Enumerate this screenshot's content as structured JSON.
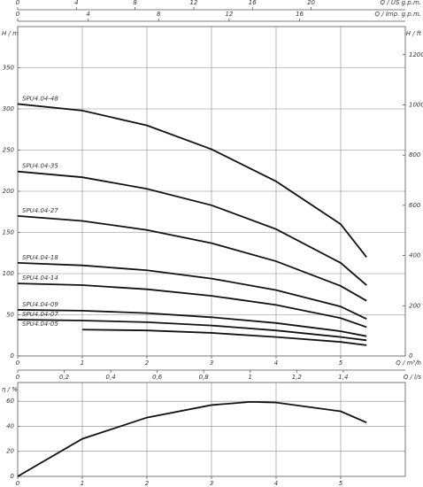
{
  "chart_data": [
    {
      "type": "line",
      "xaxes": [
        {
          "label": "Q / US g.p.m.",
          "lim": [
            0,
            26.42
          ],
          "ticks": [
            0,
            4,
            8,
            12,
            16,
            20
          ]
        },
        {
          "label": "Q / Imp. g.p.m.",
          "lim": [
            0,
            22.0
          ],
          "ticks": [
            0,
            4,
            8,
            12,
            16
          ]
        },
        {
          "label": "Q / m³/h",
          "lim": [
            0,
            6
          ],
          "ticks": [
            0,
            1,
            2,
            3,
            4,
            5
          ]
        },
        {
          "label": "Q / l/s",
          "lim": [
            0,
            1.667
          ],
          "ticks": [
            0,
            {
              "value": 0.2,
              "label": "0,2"
            },
            {
              "value": 0.4,
              "label": "0,4"
            },
            {
              "value": 0.6,
              "label": "0,6"
            },
            {
              "value": 0.8,
              "label": "0,8"
            },
            1,
            {
              "value": 1.2,
              "label": "1,2"
            },
            {
              "value": 1.4,
              "label": "1,4"
            }
          ]
        }
      ],
      "yaxes": [
        {
          "label": "H / m",
          "lim": [
            0,
            400
          ],
          "ticks": [
            0,
            50,
            100,
            150,
            200,
            250,
            300,
            350
          ]
        },
        {
          "label": "H / ft",
          "lim": [
            0,
            1312.3
          ],
          "ticks": [
            0,
            200,
            400,
            600,
            800,
            1000,
            1200
          ]
        }
      ],
      "grid": true,
      "series": [
        {
          "name": "SPU4.04-48",
          "color": "#111111",
          "x": [
            0,
            1,
            2,
            3,
            4,
            5,
            5.4
          ],
          "values": [
            306,
            298,
            280,
            251,
            212,
            160,
            120
          ]
        },
        {
          "name": "SPU4.04-35",
          "color": "#111111",
          "x": [
            0,
            1,
            2,
            3,
            4,
            5,
            5.4
          ],
          "values": [
            224,
            217,
            203,
            183,
            154,
            113,
            86
          ]
        },
        {
          "name": "SPU4.04-27",
          "color": "#111111",
          "x": [
            0,
            1,
            2,
            3,
            4,
            5,
            5.4
          ],
          "values": [
            170,
            164,
            153,
            137,
            115,
            85,
            67
          ]
        },
        {
          "name": "SPU4.04-18",
          "color": "#111111",
          "x": [
            0,
            1,
            2,
            3,
            4,
            5,
            5.4
          ],
          "values": [
            113,
            110,
            104,
            94,
            80,
            60,
            45
          ]
        },
        {
          "name": "SPU4.04-14",
          "color": "#111111",
          "x": [
            0,
            1,
            2,
            3,
            4,
            5,
            5.4
          ],
          "values": [
            88,
            86,
            81,
            73,
            62,
            46,
            35
          ]
        },
        {
          "name": "SPU4.04-09",
          "color": "#111111",
          "x": [
            0,
            1,
            2,
            3,
            4,
            5,
            5.4
          ],
          "values": [
            56,
            55,
            52,
            47,
            40,
            30,
            24
          ]
        },
        {
          "name": "SPU4.04-07",
          "color": "#111111",
          "x": [
            0,
            1,
            2,
            3,
            4,
            5,
            5.4
          ],
          "values": [
            44,
            43,
            41,
            37,
            31,
            23,
            19
          ]
        },
        {
          "name": "SPU4.04-05",
          "color": "#111111",
          "x": [
            1,
            2,
            3,
            4,
            5,
            5.4
          ],
          "values": [
            32,
            31,
            28,
            23,
            17,
            13
          ]
        }
      ]
    },
    {
      "type": "line",
      "xaxes": [
        {
          "lim": [
            0,
            6
          ],
          "ticks": [
            0,
            1,
            2,
            3,
            4,
            5
          ]
        }
      ],
      "yaxes": [
        {
          "label": "η / %",
          "lim": [
            0,
            75
          ],
          "ticks": [
            0,
            20,
            40,
            60
          ]
        }
      ],
      "grid": true,
      "series": [
        {
          "color": "#111111",
          "x": [
            0,
            1,
            2,
            3,
            3.6,
            4,
            5,
            5.4
          ],
          "values": [
            0,
            30,
            47,
            57,
            59.5,
            59,
            52,
            43
          ]
        }
      ]
    }
  ]
}
